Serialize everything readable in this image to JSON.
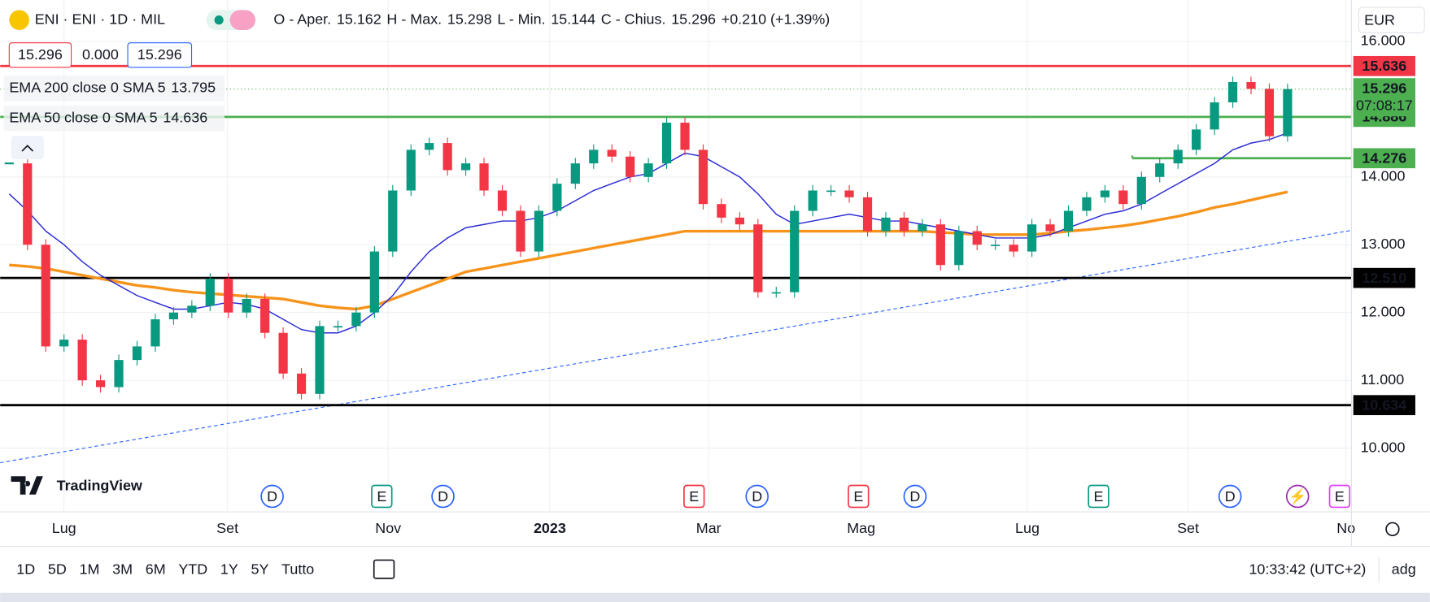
{
  "header": {
    "symbol": "ENI · ENI · 1D · MIL",
    "open_label": "O - Aper.",
    "open": "15.162",
    "high_label": "H - Max.",
    "high": "15.298",
    "low_label": "L - Min.",
    "low": "15.144",
    "close_label": "C - Chius.",
    "close": "15.296",
    "change": "+0.210 (+1.39%)",
    "bid": "15.296",
    "spread": "0.000",
    "ask": "15.296",
    "currency": "EUR"
  },
  "indicators": [
    {
      "name": "EMA 200 close 0 SMA 5",
      "value": "13.795",
      "color": "#f7931a"
    },
    {
      "name": "EMA 50 close 0 SMA 5",
      "value": "14.636",
      "color": "#2a2ad6"
    }
  ],
  "logo": "TradingView",
  "chart_data": {
    "type": "candlestick",
    "close": [
      14.2,
      13.0,
      11.5,
      11.6,
      11.0,
      10.9,
      11.3,
      11.5,
      11.9,
      12.0,
      12.1,
      12.5,
      12.0,
      12.2,
      11.7,
      11.1,
      10.8,
      11.8,
      11.8,
      12.0,
      12.9,
      13.8,
      14.4,
      14.5,
      14.1,
      14.2,
      13.8,
      13.5,
      12.9,
      13.5,
      13.9,
      14.2,
      14.4,
      14.3,
      14.0,
      14.2,
      14.8,
      14.4,
      13.6,
      13.4,
      13.3,
      12.3,
      12.3,
      13.5,
      13.8,
      13.8,
      13.7,
      13.2,
      13.4,
      13.2,
      13.3,
      12.7,
      13.2,
      13.0,
      13.0,
      12.9,
      13.3,
      13.2,
      13.5,
      13.7,
      13.8,
      13.6,
      14.0,
      14.2,
      14.4,
      14.7,
      15.1,
      15.4,
      15.3,
      14.6,
      15.296
    ],
    "series": [
      {
        "name": "EMA 200",
        "color": "#f7931a",
        "values": [
          12.7,
          12.68,
          12.65,
          12.6,
          12.55,
          12.5,
          12.45,
          12.4,
          12.37,
          12.33,
          12.3,
          12.28,
          12.26,
          12.24,
          12.22,
          12.2,
          12.15,
          12.1,
          12.07,
          12.05,
          12.1,
          12.2,
          12.3,
          12.4,
          12.5,
          12.6,
          12.65,
          12.7,
          12.75,
          12.8,
          12.85,
          12.9,
          12.95,
          13.0,
          13.05,
          13.1,
          13.15,
          13.2,
          13.2,
          13.2,
          13.2,
          13.2,
          13.2,
          13.2,
          13.2,
          13.2,
          13.2,
          13.2,
          13.2,
          13.2,
          13.2,
          13.18,
          13.17,
          13.15,
          13.15,
          13.15,
          13.15,
          13.17,
          13.2,
          13.22,
          13.25,
          13.28,
          13.32,
          13.37,
          13.42,
          13.48,
          13.55,
          13.6,
          13.66,
          13.72,
          13.78
        ]
      },
      {
        "name": "EMA 50",
        "color": "#2a2ad6",
        "values": [
          13.75,
          13.5,
          13.2,
          13.0,
          12.75,
          12.55,
          12.4,
          12.25,
          12.15,
          12.05,
          12.05,
          12.1,
          12.15,
          12.12,
          12.05,
          11.9,
          11.75,
          11.7,
          11.7,
          11.8,
          12.0,
          12.25,
          12.6,
          12.9,
          13.1,
          13.25,
          13.3,
          13.35,
          13.35,
          13.4,
          13.5,
          13.65,
          13.8,
          13.9,
          14.0,
          14.05,
          14.2,
          14.35,
          14.3,
          14.15,
          14.0,
          13.75,
          13.45,
          13.3,
          13.35,
          13.4,
          13.45,
          13.4,
          13.35,
          13.35,
          13.3,
          13.25,
          13.2,
          13.15,
          13.1,
          13.1,
          13.1,
          13.15,
          13.25,
          13.35,
          13.45,
          13.5,
          13.6,
          13.75,
          13.9,
          14.05,
          14.2,
          14.4,
          14.5,
          14.55,
          14.65
        ]
      }
    ],
    "up_color": "#089981",
    "down_color": "#f23645",
    "levels": [
      {
        "value": 15.636,
        "color": "#f23645"
      },
      {
        "value": 14.886,
        "color": "#4caf50"
      },
      {
        "value": 14.276,
        "color": "#4caf50",
        "from": 61.5
      },
      {
        "value": {
          "value": 12.51,
          "label": "12.510"
        },
        "color": "#000000"
      },
      {
        "value": 10.634,
        "color": "#000000"
      }
    ],
    "trendline": {
      "x": [
        -0.5,
        73.5
      ],
      "values": [
        9.785,
        13.212
      ],
      "color": "#2962ff"
    },
    "last_price": 15.296,
    "countdown": "07:08:17",
    "last_color": "#4caf50",
    "xlim": [
      -0.5,
      73.5
    ],
    "ylim": [
      9.06,
      16.61
    ],
    "xticks": [
      {
        "value": 3,
        "label": "Lug"
      },
      {
        "value": 11.95,
        "label": "Set"
      },
      {
        "value": 20.75,
        "label": "Nov"
      },
      {
        "value": 29.6,
        "label": "2023"
      },
      {
        "value": 38.3,
        "label": "Mar"
      },
      {
        "value": 46.65,
        "label": "Mag"
      },
      {
        "value": 55.75,
        "label": "Lug"
      },
      {
        "value": 64.55,
        "label": "Set"
      },
      {
        "value": 73.2,
        "label": "No"
      }
    ],
    "yticks": [
      {
        "value": 10,
        "label": "10.000"
      },
      {
        "value": 11,
        "label": "11.000"
      },
      {
        "value": 12,
        "label": "12.000"
      },
      {
        "value": 13,
        "label": "13.000"
      },
      {
        "value": 14,
        "label": "14.000"
      },
      {
        "value": 16,
        "label": "16.000"
      }
    ],
    "grid": true,
    "events": [
      {
        "x": 14.4,
        "label": "D",
        "color": "#2962ff"
      },
      {
        "x": 20.4,
        "label": "E",
        "color": "#089981"
      },
      {
        "x": 23.75,
        "label": "D",
        "color": "#2962ff"
      },
      {
        "x": 37.5,
        "label": "E",
        "color": "#f23645"
      },
      {
        "x": 40.95,
        "label": "D",
        "color": "#2962ff"
      },
      {
        "x": 46.5,
        "label": "E",
        "color": "#f23645"
      },
      {
        "x": 49.6,
        "label": "D",
        "color": "#2962ff"
      },
      {
        "x": 59.65,
        "label": "E",
        "color": "#089981"
      },
      {
        "x": 66.85,
        "label": "D",
        "color": "#2962ff"
      },
      {
        "x": 70.55,
        "label": "⚡",
        "color": "#9c27b0"
      },
      {
        "x": 72.85,
        "label": "E",
        "color": "#e040fb"
      }
    ]
  },
  "toolbar": {
    "ranges": [
      "1D",
      "5D",
      "1M",
      "3M",
      "6M",
      "YTD",
      "1Y",
      "5Y",
      "Tutto"
    ],
    "clock": "10:33:42 (UTC+2)",
    "adjust": "adg"
  }
}
